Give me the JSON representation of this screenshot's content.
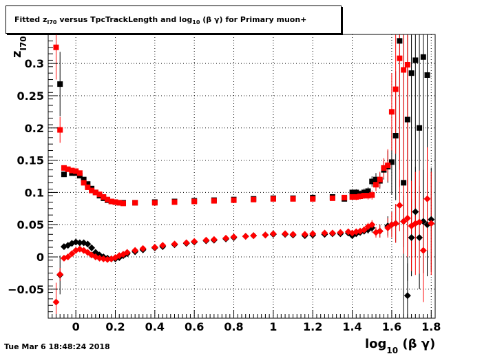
{
  "chart_data": {
    "type": "scatter",
    "title_parts": {
      "pre": "Fitted  z",
      "sub": "I70",
      "mid": "  versus TpcTrackLength and log",
      "sub2": "10",
      "post": " (β γ) for Primary muon+"
    },
    "xlabel": {
      "base": "log",
      "sub": "10",
      "rest": " (β γ)"
    },
    "ylabel": {
      "base": "z",
      "sub": "I70"
    },
    "xlim": [
      -0.14,
      1.82
    ],
    "ylim": [
      -0.095,
      0.345
    ],
    "x_ticks": [
      "0",
      "0.2",
      "0.4",
      "0.6",
      "0.8",
      "1",
      "1.2",
      "1.4",
      "1.6",
      "1.8"
    ],
    "x_tick_values": [
      0,
      0.2,
      0.4,
      0.6,
      0.8,
      1.0,
      1.2,
      1.4,
      1.6,
      1.8
    ],
    "y_ticks": [
      "−0.05",
      "0",
      "0.05",
      "0.1",
      "0.15",
      "0.2",
      "0.25",
      "0.3"
    ],
    "y_tick_values": [
      -0.05,
      0,
      0.05,
      0.1,
      0.15,
      0.2,
      0.25,
      0.3
    ],
    "grid": true,
    "series": [
      {
        "marker": "square",
        "color": "#000000",
        "x": [
          -0.08,
          -0.06,
          -0.02,
          0.0,
          0.02,
          0.04,
          0.06,
          0.08,
          0.1,
          0.12,
          0.14,
          0.16,
          0.18,
          0.2,
          0.22,
          0.24,
          0.3,
          0.4,
          0.5,
          0.6,
          0.7,
          0.8,
          0.9,
          1.0,
          1.1,
          1.2,
          1.3,
          1.36,
          1.4,
          1.42,
          1.44,
          1.46,
          1.48,
          1.5,
          1.52,
          1.54,
          1.56,
          1.58,
          1.6,
          1.62,
          1.64,
          1.66,
          1.68,
          1.7,
          1.72,
          1.74,
          1.76,
          1.78
        ],
        "y": [
          0.268,
          0.128,
          0.13,
          0.13,
          0.126,
          0.12,
          0.113,
          0.106,
          0.1,
          0.095,
          0.091,
          0.088,
          0.086,
          0.085,
          0.084,
          0.084,
          0.084,
          0.085,
          0.086,
          0.087,
          0.088,
          0.089,
          0.09,
          0.091,
          0.091,
          0.092,
          0.093,
          0.09,
          0.1,
          0.1,
          0.098,
          0.1,
          0.102,
          0.117,
          0.12,
          0.118,
          0.135,
          0.14,
          0.147,
          0.188,
          0.335,
          0.115,
          0.213,
          0.285,
          0.305,
          0.2,
          0.31,
          0.282
        ],
        "err": [
          0.05,
          0.004,
          0.003,
          0.003,
          0.003,
          0.002,
          0.002,
          0.002,
          0.002,
          0.002,
          0.001,
          0.001,
          0.001,
          0.001,
          0.001,
          0.001,
          0.001,
          0.001,
          0.001,
          0.001,
          0.001,
          0.001,
          0.001,
          0.001,
          0.001,
          0.001,
          0.002,
          0.003,
          0.004,
          0.005,
          0.005,
          0.006,
          0.006,
          0.008,
          0.01,
          0.012,
          0.015,
          0.025,
          0.05,
          0.1,
          0.2,
          0.25,
          0.25,
          0.25,
          0.25,
          0.25,
          0.25,
          0.25
        ]
      },
      {
        "marker": "square",
        "color": "#ff0000",
        "x": [
          -0.1,
          -0.08,
          -0.06,
          -0.04,
          -0.02,
          0.0,
          0.02,
          0.04,
          0.06,
          0.08,
          0.1,
          0.12,
          0.14,
          0.16,
          0.18,
          0.2,
          0.22,
          0.24,
          0.3,
          0.4,
          0.5,
          0.6,
          0.7,
          0.8,
          0.9,
          1.0,
          1.1,
          1.2,
          1.3,
          1.36,
          1.4,
          1.42,
          1.44,
          1.46,
          1.48,
          1.5,
          1.52,
          1.54,
          1.56,
          1.58,
          1.6,
          1.62,
          1.64,
          1.66,
          1.68
        ],
        "y": [
          0.325,
          0.197,
          0.138,
          0.136,
          0.134,
          0.133,
          0.13,
          0.115,
          0.108,
          0.103,
          0.1,
          0.097,
          0.093,
          0.089,
          0.086,
          0.085,
          0.084,
          0.083,
          0.084,
          0.084,
          0.085,
          0.086,
          0.087,
          0.088,
          0.089,
          0.09,
          0.09,
          0.09,
          0.091,
          0.092,
          0.093,
          0.093,
          0.094,
          0.095,
          0.095,
          0.096,
          0.112,
          0.12,
          0.138,
          0.142,
          0.225,
          0.26,
          0.308,
          0.29,
          0.298
        ],
        "err": [
          0.05,
          0.02,
          0.004,
          0.003,
          0.003,
          0.003,
          0.002,
          0.002,
          0.002,
          0.002,
          0.002,
          0.002,
          0.001,
          0.001,
          0.001,
          0.001,
          0.001,
          0.001,
          0.001,
          0.001,
          0.001,
          0.001,
          0.001,
          0.001,
          0.001,
          0.001,
          0.001,
          0.001,
          0.002,
          0.003,
          0.004,
          0.005,
          0.005,
          0.005,
          0.006,
          0.007,
          0.01,
          0.012,
          0.015,
          0.025,
          0.06,
          0.1,
          0.2,
          0.25,
          0.25
        ]
      },
      {
        "marker": "diamond",
        "color": "#000000",
        "x": [
          -0.08,
          -0.06,
          -0.04,
          -0.02,
          0.0,
          0.02,
          0.04,
          0.06,
          0.08,
          0.1,
          0.12,
          0.14,
          0.16,
          0.18,
          0.2,
          0.22,
          0.24,
          0.26,
          0.3,
          0.34,
          0.4,
          0.44,
          0.5,
          0.56,
          0.6,
          0.66,
          0.7,
          0.76,
          0.8,
          0.86,
          0.9,
          0.96,
          1.0,
          1.06,
          1.1,
          1.16,
          1.2,
          1.26,
          1.3,
          1.34,
          1.38,
          1.4,
          1.42,
          1.44,
          1.46,
          1.48,
          1.5,
          1.54,
          1.58,
          1.6,
          1.62,
          1.66,
          1.68,
          1.7,
          1.72,
          1.74,
          1.76,
          1.78,
          1.8
        ],
        "y": [
          -0.028,
          0.016,
          0.018,
          0.021,
          0.023,
          0.022,
          0.022,
          0.02,
          0.014,
          0.007,
          0.003,
          0.0,
          -0.002,
          -0.003,
          -0.003,
          -0.001,
          0.002,
          0.005,
          0.008,
          0.011,
          0.014,
          0.016,
          0.019,
          0.021,
          0.023,
          0.025,
          0.026,
          0.028,
          0.03,
          0.032,
          0.033,
          0.034,
          0.035,
          0.035,
          0.034,
          0.033,
          0.034,
          0.035,
          0.036,
          0.036,
          0.037,
          0.033,
          0.036,
          0.038,
          0.04,
          0.042,
          0.045,
          0.04,
          0.048,
          0.05,
          0.052,
          0.055,
          -0.06,
          0.03,
          0.07,
          0.03,
          0.055,
          0.05,
          0.058
        ],
        "err": [
          0.03,
          0.004,
          0.003,
          0.003,
          0.003,
          0.002,
          0.002,
          0.002,
          0.002,
          0.002,
          0.002,
          0.002,
          0.001,
          0.001,
          0.001,
          0.001,
          0.001,
          0.001,
          0.001,
          0.001,
          0.001,
          0.001,
          0.001,
          0.001,
          0.001,
          0.001,
          0.001,
          0.001,
          0.001,
          0.001,
          0.001,
          0.001,
          0.001,
          0.001,
          0.001,
          0.001,
          0.001,
          0.001,
          0.002,
          0.002,
          0.003,
          0.004,
          0.004,
          0.005,
          0.005,
          0.006,
          0.007,
          0.01,
          0.015,
          0.02,
          0.03,
          0.04,
          0.05,
          0.06,
          0.07,
          0.08,
          0.08,
          0.08,
          0.08
        ]
      },
      {
        "marker": "diamond",
        "color": "#ff0000",
        "x": [
          -0.1,
          -0.08,
          -0.06,
          -0.04,
          -0.02,
          0.0,
          0.02,
          0.04,
          0.06,
          0.08,
          0.1,
          0.12,
          0.14,
          0.16,
          0.18,
          0.2,
          0.22,
          0.24,
          0.26,
          0.3,
          0.34,
          0.4,
          0.44,
          0.5,
          0.56,
          0.6,
          0.66,
          0.7,
          0.76,
          0.8,
          0.86,
          0.9,
          0.96,
          1.0,
          1.06,
          1.1,
          1.16,
          1.2,
          1.26,
          1.3,
          1.34,
          1.38,
          1.4,
          1.42,
          1.44,
          1.46,
          1.48,
          1.5,
          1.52,
          1.54,
          1.58,
          1.6,
          1.62,
          1.64,
          1.66,
          1.68,
          1.7,
          1.72,
          1.74,
          1.76,
          1.78,
          1.8
        ],
        "y": [
          -0.07,
          -0.027,
          -0.002,
          0.0,
          0.005,
          0.01,
          0.012,
          0.01,
          0.007,
          0.003,
          0.0,
          -0.002,
          -0.003,
          -0.004,
          -0.003,
          -0.001,
          0.002,
          0.004,
          0.007,
          0.01,
          0.013,
          0.015,
          0.018,
          0.02,
          0.022,
          0.024,
          0.026,
          0.027,
          0.029,
          0.031,
          0.032,
          0.033,
          0.034,
          0.036,
          0.036,
          0.035,
          0.035,
          0.036,
          0.037,
          0.037,
          0.038,
          0.039,
          0.037,
          0.039,
          0.04,
          0.042,
          0.047,
          0.05,
          0.038,
          0.04,
          0.045,
          0.05,
          0.052,
          0.08,
          0.055,
          0.06,
          0.048,
          0.052,
          0.054,
          0.01,
          0.09,
          0.052
        ],
        "err": [
          0.03,
          0.01,
          0.004,
          0.003,
          0.003,
          0.003,
          0.002,
          0.002,
          0.002,
          0.002,
          0.002,
          0.002,
          0.002,
          0.001,
          0.001,
          0.001,
          0.001,
          0.001,
          0.001,
          0.001,
          0.001,
          0.001,
          0.001,
          0.001,
          0.001,
          0.001,
          0.001,
          0.001,
          0.001,
          0.001,
          0.001,
          0.001,
          0.001,
          0.001,
          0.001,
          0.001,
          0.001,
          0.001,
          0.001,
          0.002,
          0.002,
          0.003,
          0.004,
          0.004,
          0.005,
          0.005,
          0.006,
          0.007,
          0.008,
          0.01,
          0.015,
          0.02,
          0.03,
          0.04,
          0.05,
          0.06,
          0.07,
          0.08,
          0.08,
          0.08,
          0.08,
          0.08
        ]
      }
    ]
  },
  "footer": {
    "datestamp": "Tue Mar  6 18:48:24 2018"
  }
}
